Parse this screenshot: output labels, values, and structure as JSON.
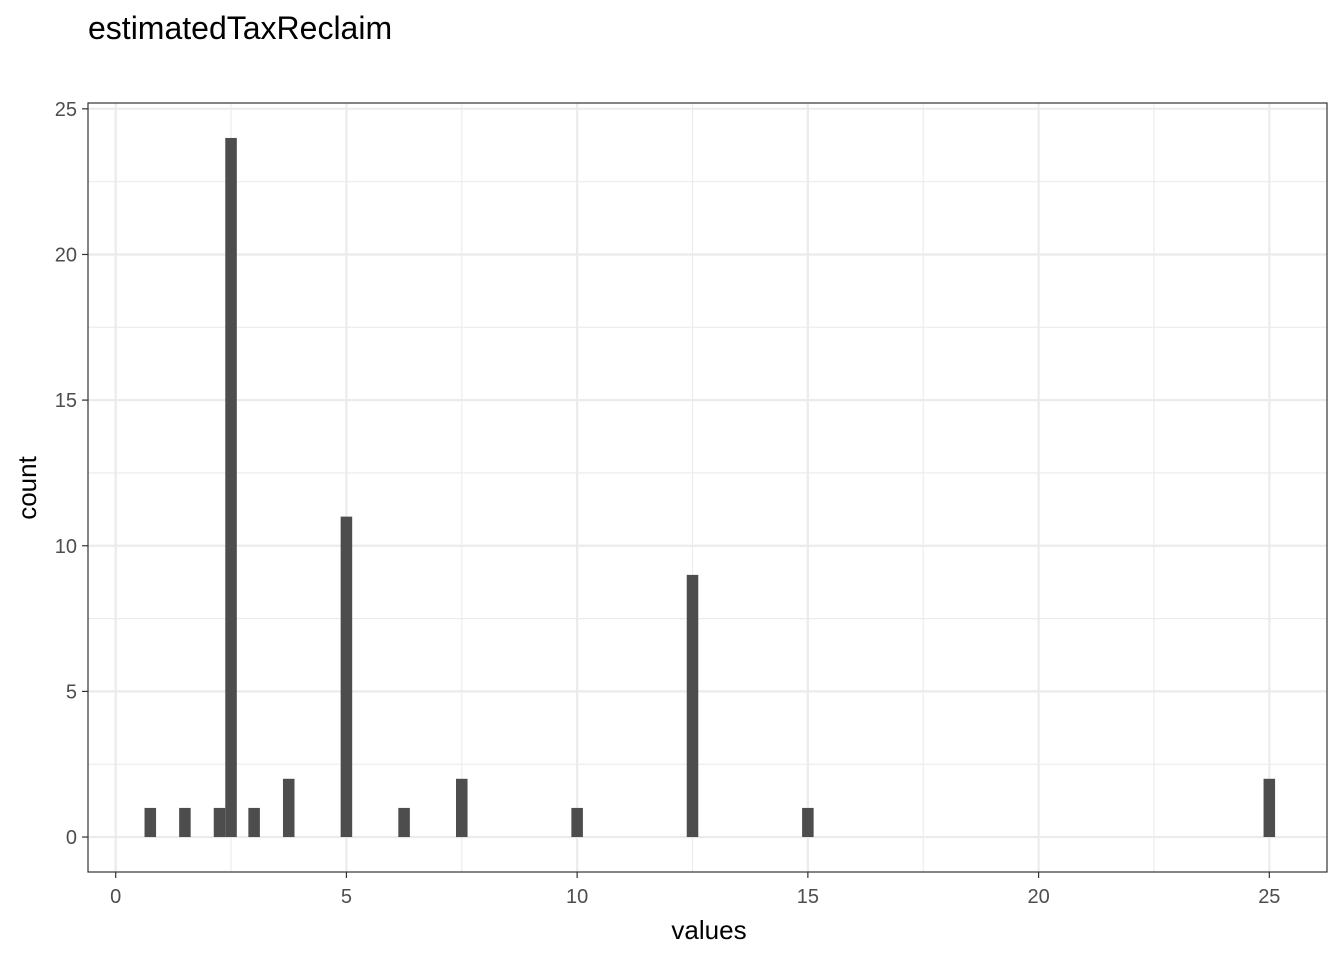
{
  "chart_data": {
    "type": "bar",
    "title": "estimatedTaxReclaim",
    "xlabel": "values",
    "ylabel": "count",
    "xlim": [
      -0.6,
      26.25
    ],
    "ylim": [
      -1.2,
      25.2
    ],
    "xticks": [
      0,
      5,
      10,
      15,
      20,
      25
    ],
    "yticks": [
      0,
      5,
      10,
      15,
      20,
      25
    ],
    "xminor": [
      2.5,
      7.5,
      12.5,
      17.5,
      22.5
    ],
    "yminor": [
      2.5,
      7.5,
      12.5,
      17.5,
      22.5
    ],
    "bin_width": 0.25,
    "x": [
      0.75,
      1.5,
      2.25,
      2.5,
      3.0,
      3.75,
      5.0,
      6.25,
      7.5,
      10.0,
      12.5,
      15.0,
      25.0
    ],
    "values": [
      1,
      1,
      1,
      24,
      1,
      2,
      11,
      1,
      2,
      1,
      9,
      1,
      2
    ],
    "grid": true,
    "bar_color": "#4d4d4d",
    "grid_color": "#ebebeb",
    "panel_border_color": "#333333"
  }
}
